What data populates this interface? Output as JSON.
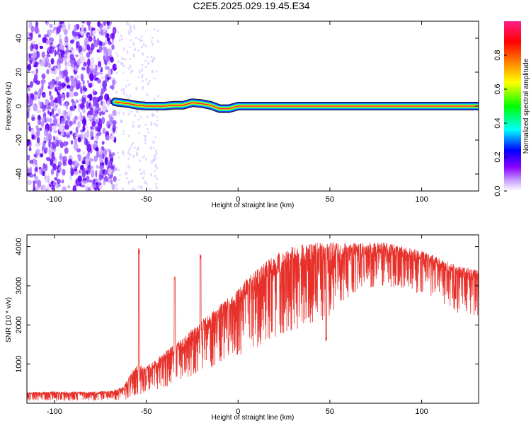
{
  "title": "C2E5.2025.029.19.45.E34",
  "chart_data": [
    {
      "type": "heatmap",
      "title": "C2E5.2025.029.19.45.E34",
      "xlabel": "Height of straight line (km)",
      "ylabel": "Frequency (Hz)",
      "xlim": [
        -115,
        131
      ],
      "ylim": [
        -50,
        50
      ],
      "x_ticks": [
        -100,
        -50,
        0,
        50,
        100
      ],
      "y_ticks": [
        -40,
        -20,
        0,
        20,
        40
      ],
      "colorbar": {
        "label": "Normalized spectral amplitude",
        "range": [
          0,
          1
        ],
        "ticks": [
          0.0,
          0.2,
          0.4,
          0.6,
          0.8
        ],
        "tick_labels": [
          "0.0",
          "0.2",
          "0.4",
          "0.6",
          "0.8"
        ],
        "colors": [
          "#ffffff",
          "#8a00ff",
          "#0000ff",
          "#00ffff",
          "#00ff00",
          "#ffff00",
          "#ff8000",
          "#ff0000",
          "#ff1e8c"
        ]
      },
      "noise_region": {
        "x_range": [
          -115,
          -67
        ],
        "y_range": [
          -50,
          50
        ]
      },
      "signal_track": {
        "x": [
          -67,
          -60,
          -55,
          -50,
          -45,
          -40,
          -35,
          -30,
          -25,
          -20,
          -15,
          -10,
          -5,
          0,
          5,
          10,
          20,
          40,
          60,
          80,
          100,
          131
        ],
        "y": [
          2.5,
          1.5,
          0.5,
          0,
          0,
          0,
          0.5,
          0.5,
          2,
          1.5,
          0.5,
          -1.5,
          -1.5,
          0,
          0,
          0,
          0,
          0,
          0,
          0,
          0,
          0
        ]
      }
    },
    {
      "type": "line",
      "xlabel": "Height of straight line (km)",
      "ylabel": "SNR (10 * v/v)",
      "xlim": [
        -115,
        131
      ],
      "ylim": [
        0,
        4300
      ],
      "x_ticks": [
        -100,
        -50,
        0,
        50,
        100
      ],
      "y_ticks": [
        1000,
        2000,
        3000,
        4000
      ],
      "color": "#e8302a",
      "envelope": {
        "x": [
          -115,
          -100,
          -80,
          -68,
          -62,
          -58,
          -55,
          -50,
          -45,
          -40,
          -35,
          -30,
          -25,
          -20,
          -15,
          -10,
          -5,
          0,
          5,
          10,
          15,
          20,
          25,
          30,
          35,
          40,
          45,
          50,
          55,
          60,
          70,
          80,
          90,
          100,
          110,
          120,
          131
        ],
        "low": [
          60,
          60,
          60,
          60,
          80,
          150,
          200,
          250,
          300,
          400,
          500,
          600,
          700,
          800,
          900,
          1000,
          1100,
          1200,
          1300,
          1400,
          1500,
          1600,
          1700,
          1800,
          1900,
          2000,
          2100,
          2200,
          2500,
          2700,
          2900,
          3000,
          2900,
          2800,
          2600,
          2300,
          2200
        ],
        "high": [
          280,
          300,
          290,
          320,
          450,
          800,
          1000,
          950,
          1100,
          1300,
          1500,
          1700,
          1900,
          2100,
          2300,
          2500,
          2700,
          2900,
          3200,
          3400,
          3600,
          3800,
          3950,
          4000,
          4050,
          4100,
          4100,
          4100,
          4100,
          4100,
          4100,
          4100,
          4000,
          3900,
          3700,
          3500,
          3400
        ]
      },
      "spikes": [
        {
          "x": -54,
          "y": 3950
        },
        {
          "x": -34.5,
          "y": 3250
        },
        {
          "x": -20.5,
          "y": 3800
        },
        {
          "x": 48,
          "y": 1700
        }
      ]
    }
  ]
}
